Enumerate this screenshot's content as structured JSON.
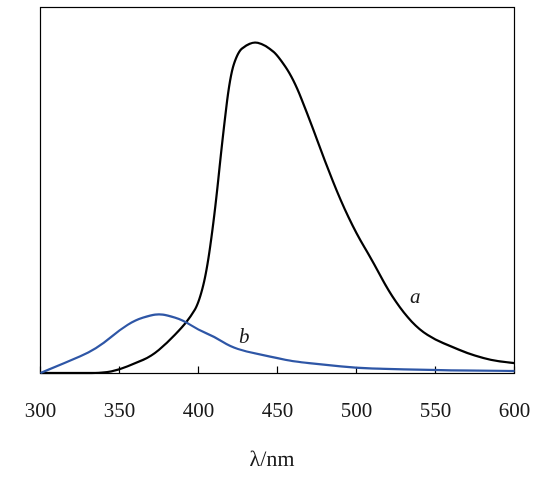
{
  "chart_data": {
    "type": "line",
    "title": "",
    "xlabel": "λ/nm",
    "ylabel": "",
    "xlim": [
      300,
      600
    ],
    "ylim": [
      0,
      1.0
    ],
    "x_ticks": [
      "300",
      "350",
      "400",
      "450",
      "500",
      "550",
      "600"
    ],
    "y_ticks_visible": false,
    "grid": false,
    "legend": "none",
    "series": [
      {
        "name": "a",
        "color": "#000000",
        "x": [
          300,
          320,
          340,
          350,
          360,
          370,
          380,
          390,
          395,
          400,
          405,
          410,
          415,
          420,
          425,
          430,
          435,
          440,
          445,
          450,
          460,
          470,
          480,
          490,
          500,
          510,
          520,
          530,
          540,
          550,
          560,
          570,
          580,
          590,
          600
        ],
        "y": [
          0.0,
          0.0,
          0.0,
          0.01,
          0.03,
          0.05,
          0.09,
          0.14,
          0.17,
          0.21,
          0.3,
          0.47,
          0.7,
          0.9,
          0.97,
          0.99,
          1.0,
          0.995,
          0.98,
          0.96,
          0.89,
          0.77,
          0.64,
          0.52,
          0.42,
          0.34,
          0.25,
          0.18,
          0.13,
          0.1,
          0.08,
          0.06,
          0.045,
          0.035,
          0.03
        ]
      },
      {
        "name": "b",
        "color": "#2e56a6",
        "x": [
          300,
          310,
          320,
          330,
          340,
          350,
          360,
          370,
          375,
          380,
          390,
          400,
          410,
          420,
          430,
          440,
          450,
          460,
          480,
          500,
          520,
          540,
          560,
          580,
          600
        ],
        "y": [
          0.0,
          0.02,
          0.04,
          0.06,
          0.09,
          0.13,
          0.16,
          0.175,
          0.178,
          0.175,
          0.16,
          0.13,
          0.11,
          0.08,
          0.065,
          0.055,
          0.045,
          0.035,
          0.025,
          0.015,
          0.012,
          0.01,
          0.008,
          0.007,
          0.006
        ]
      }
    ],
    "annotations": [
      "a",
      "b"
    ]
  }
}
